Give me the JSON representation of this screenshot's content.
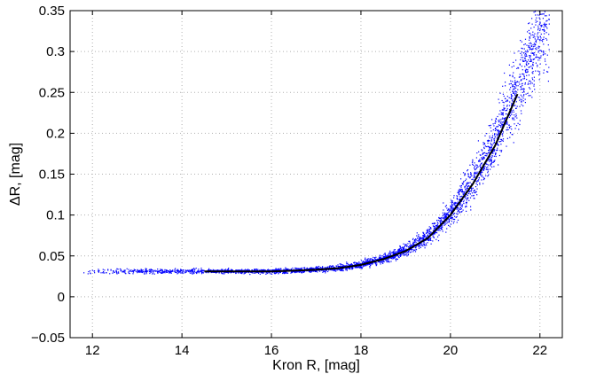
{
  "chart_data": {
    "type": "scatter",
    "title": "",
    "xlabel": "Kron R, [mag]",
    "ylabel": "ΔR, [mag]",
    "xlim": [
      11.5,
      22.5
    ],
    "ylim": [
      -0.05,
      0.35
    ],
    "xticks": [
      12,
      14,
      16,
      18,
      20,
      22
    ],
    "xtick_labels": [
      "12",
      "14",
      "16",
      "18",
      "20",
      "22"
    ],
    "yticks": [
      -0.05,
      0,
      0.05,
      0.1,
      0.15,
      0.2,
      0.25,
      0.3,
      0.35
    ],
    "ytick_labels": [
      "−0.05",
      "0",
      "0.05",
      "0.1",
      "0.15",
      "0.2",
      "0.25",
      "0.3",
      "0.35"
    ],
    "grid": true,
    "legend": "none",
    "series": [
      {
        "kind": "scatter",
        "color": "#0000ff",
        "marker": "point",
        "note_range_x": [
          11.7,
          22.2
        ],
        "description_points": "dense cloud of individual measurements following the median curve with increasing scatter at faint magnitudes"
      },
      {
        "kind": "line",
        "color": "#000000",
        "x": [
          14.5,
          15,
          15.5,
          16,
          16.5,
          17,
          17.5,
          18,
          18.5,
          19,
          19.5,
          20,
          20.5,
          21,
          21.5
        ],
        "y": [
          0.031,
          0.031,
          0.031,
          0.031,
          0.032,
          0.033,
          0.035,
          0.039,
          0.046,
          0.056,
          0.072,
          0.1,
          0.138,
          0.185,
          0.248
        ]
      }
    ]
  }
}
